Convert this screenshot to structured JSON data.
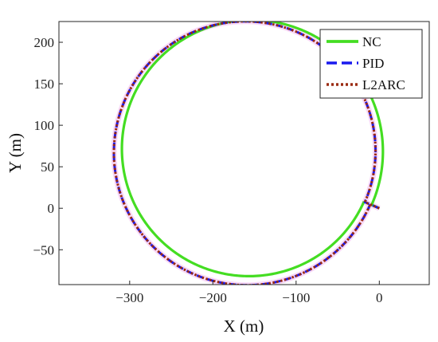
{
  "chart_data": {
    "type": "line",
    "title": "",
    "xlabel": "X (m)",
    "ylabel": "Y (m)",
    "xlim": [
      -385,
      60
    ],
    "ylim": [
      -92,
      225
    ],
    "xticks": [
      -300,
      -200,
      -100,
      0
    ],
    "yticks": [
      -50,
      0,
      50,
      100,
      150,
      200
    ],
    "grid": false,
    "legend_position": "top-right",
    "series": [
      {
        "name": "NC",
        "color": "#44dd22",
        "style": "solid",
        "path": {
          "kind": "spiral-in",
          "center": [
            -155,
            70
          ],
          "start_radius": 160,
          "end_radius": 150,
          "start": [
            0,
            0
          ],
          "turn_deg": 360
        }
      },
      {
        "name": "PID",
        "color": "#1a1aee",
        "style": "dashed",
        "path": {
          "kind": "spiral-out",
          "center": [
            -160,
            68
          ],
          "start_radius": 155,
          "end_radius": 162,
          "start": [
            0,
            0
          ],
          "turn_deg": 360
        }
      },
      {
        "name": "L2ARC",
        "color": "#9a2a10",
        "style": "dotted",
        "path": {
          "kind": "spiral-out",
          "center": [
            -160,
            68
          ],
          "start_radius": 155,
          "end_radius": 162,
          "start": [
            0,
            0
          ],
          "turn_deg": 360
        }
      }
    ]
  }
}
